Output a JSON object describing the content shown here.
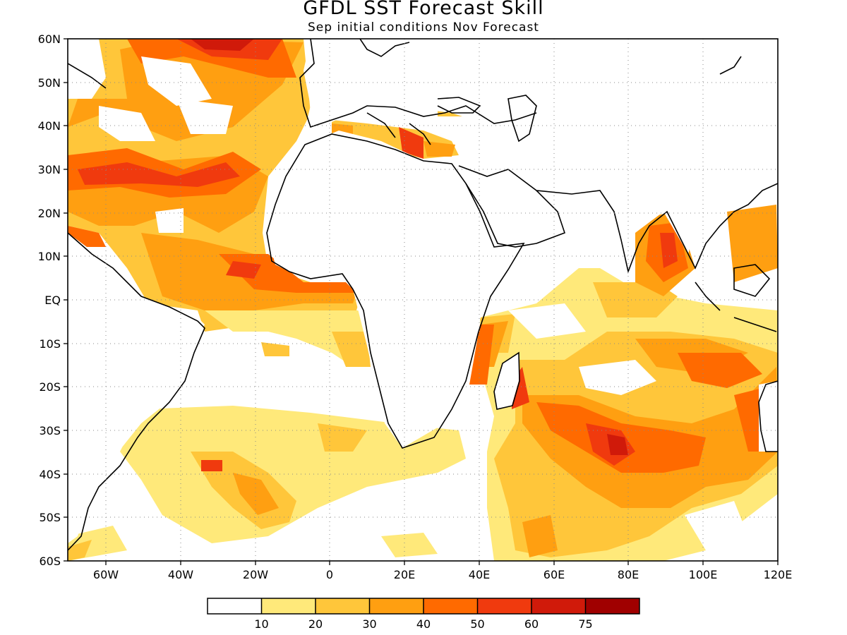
{
  "title": "GFDL SST Forecast Skill",
  "subtitle": "Sep initial conditions   Nov Forecast",
  "map": {
    "lon_range": [
      -70,
      120
    ],
    "lat_range": [
      -60,
      60
    ],
    "lat_labels": [
      "60N",
      "50N",
      "40N",
      "30N",
      "20N",
      "10N",
      "EQ",
      "10S",
      "20S",
      "30S",
      "40S",
      "50S",
      "60S"
    ],
    "lon_labels": [
      "60W",
      "40W",
      "20W",
      "0",
      "20E",
      "40E",
      "60E",
      "80E",
      "100E",
      "120E"
    ],
    "grid": "dotted"
  },
  "colorbar": {
    "boundaries": [
      "10",
      "20",
      "30",
      "40",
      "50",
      "60",
      "75"
    ],
    "colors": [
      "#ffffff",
      "#ffe97a",
      "#ffc63a",
      "#ff9f11",
      "#ff6a00",
      "#f03a0e",
      "#d01a0a",
      "#a00000"
    ]
  }
}
